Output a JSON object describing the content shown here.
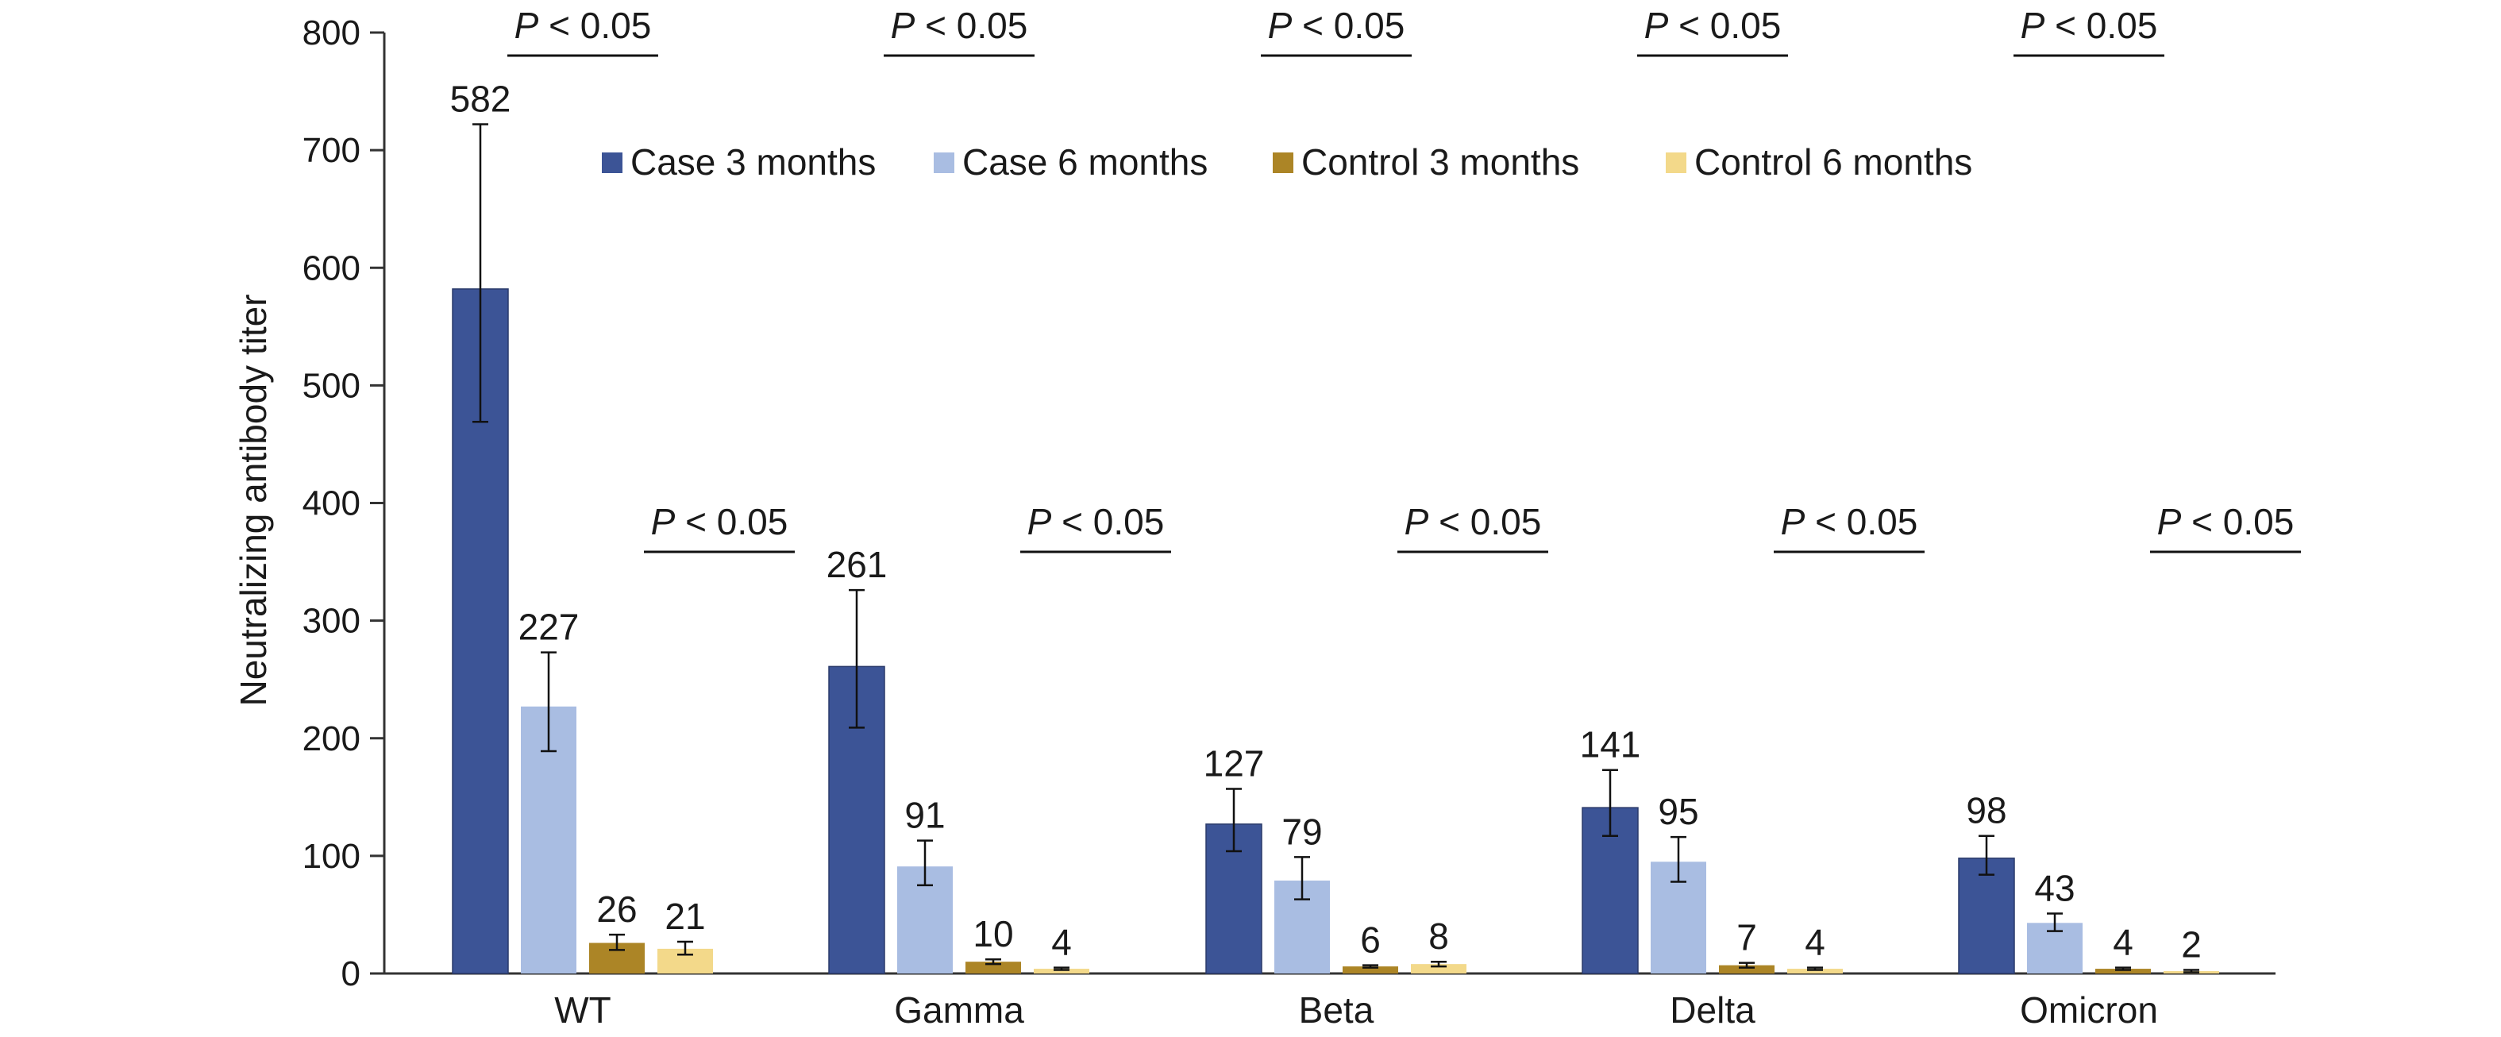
{
  "chart_data": {
    "type": "bar",
    "title": "",
    "xlabel": "",
    "ylabel": "Neutralizing antibody titer",
    "ylim": [
      0,
      800
    ],
    "yticks": [
      0,
      100,
      200,
      300,
      400,
      500,
      600,
      700,
      800
    ],
    "grid": false,
    "legend_position": "top",
    "categories": [
      "WT",
      "Gamma",
      "Beta",
      "Delta",
      "Omicron"
    ],
    "series": [
      {
        "name": "Case 3 months",
        "color": "#3c5496",
        "values": [
          582,
          261,
          127,
          141,
          98
        ],
        "error_low": [
          469,
          209,
          104,
          117,
          84
        ],
        "error_high": [
          722,
          326,
          157,
          173,
          117
        ]
      },
      {
        "name": "Case 6 months",
        "color": "#a9bde2",
        "values": [
          227,
          91,
          79,
          95,
          43
        ],
        "error_low": [
          189,
          75,
          63,
          78,
          36
        ],
        "error_high": [
          273,
          113,
          99,
          116,
          51
        ]
      },
      {
        "name": "Control 3 months",
        "color": "#ac8526",
        "values": [
          26,
          10,
          6,
          7,
          4
        ],
        "error_low": [
          20,
          8,
          5,
          5,
          3
        ],
        "error_high": [
          33,
          12,
          7,
          9,
          5
        ]
      },
      {
        "name": "Control 6 months",
        "color": "#f3d98a",
        "values": [
          21,
          4,
          8,
          4,
          2
        ],
        "error_low": [
          16,
          3,
          6,
          3,
          1
        ],
        "error_high": [
          27,
          5,
          10,
          5,
          3
        ]
      }
    ],
    "annotations": [
      {
        "category": "WT",
        "group": "case",
        "text_italic": "P",
        "text": " < 0.05"
      },
      {
        "category": "WT",
        "group": "control",
        "text_italic": "P",
        "text": " < 0.05"
      },
      {
        "category": "Gamma",
        "group": "case",
        "text_italic": "P",
        "text": " < 0.05"
      },
      {
        "category": "Gamma",
        "group": "control",
        "text_italic": "P",
        "text": " < 0.05"
      },
      {
        "category": "Beta",
        "group": "case",
        "text_italic": "P",
        "text": " < 0.05"
      },
      {
        "category": "Beta",
        "group": "control",
        "text_italic": "P",
        "text": " < 0.05"
      },
      {
        "category": "Delta",
        "group": "case",
        "text_italic": "P",
        "text": " < 0.05"
      },
      {
        "category": "Delta",
        "group": "control",
        "text_italic": "P",
        "text": " < 0.05"
      },
      {
        "category": "Omicron",
        "group": "case",
        "text_italic": "P",
        "text": " < 0.05"
      },
      {
        "category": "Omicron",
        "group": "control",
        "text_italic": "P",
        "text": " < 0.05"
      }
    ]
  }
}
